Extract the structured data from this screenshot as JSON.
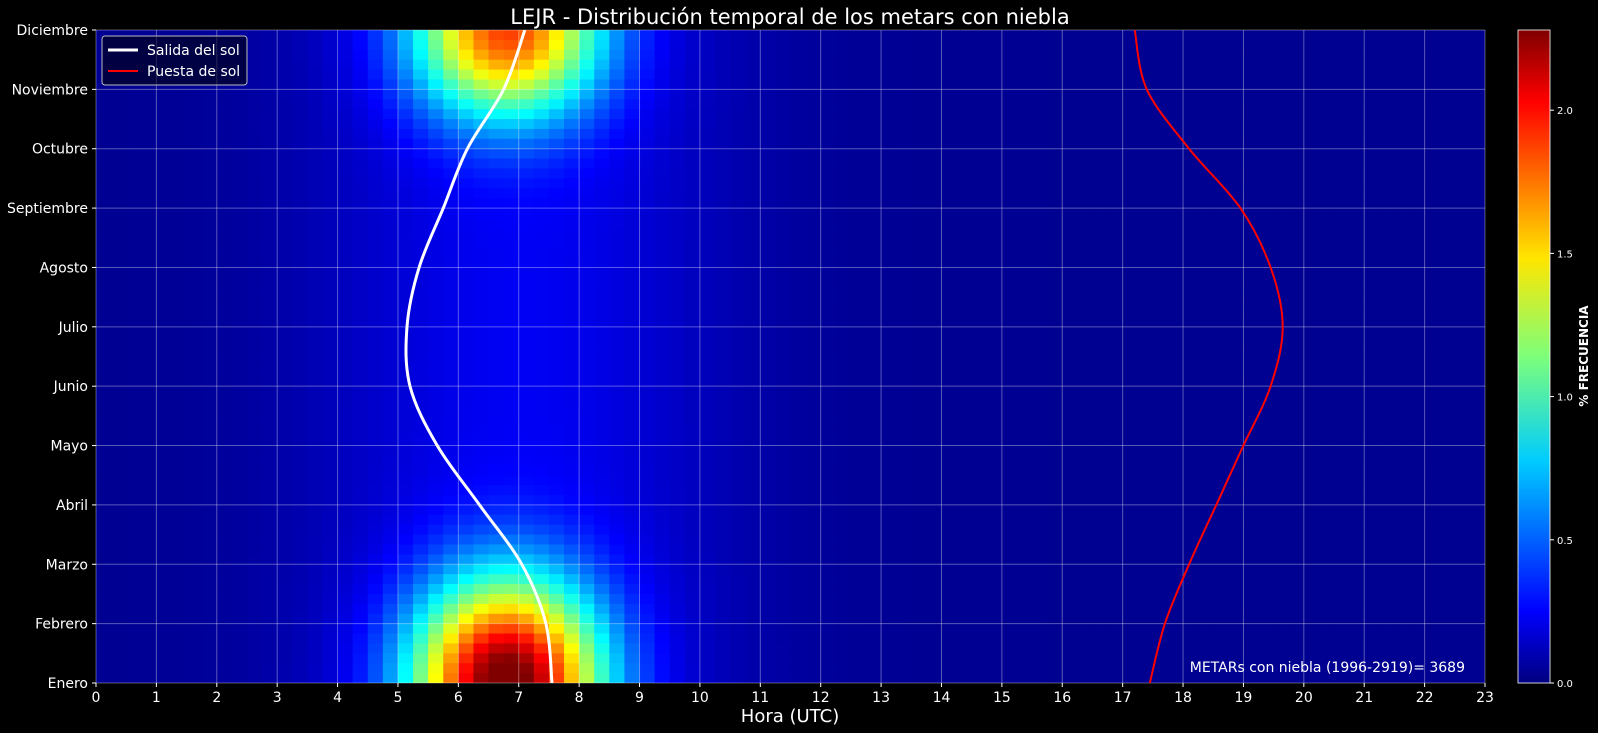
{
  "chart_data": {
    "type": "heatmap",
    "title": "LEJR - Distribución temporal de los metars con niebla",
    "xlabel": "Hora (UTC)",
    "ylabel": "",
    "xlim": [
      0,
      23
    ],
    "x_ticks": [
      "0",
      "1",
      "2",
      "3",
      "4",
      "5",
      "6",
      "7",
      "8",
      "9",
      "10",
      "11",
      "12",
      "13",
      "14",
      "15",
      "16",
      "17",
      "18",
      "19",
      "20",
      "21",
      "22",
      "23"
    ],
    "y_categories": [
      "Enero",
      "Febrero",
      "Marzo",
      "Abril",
      "Mayo",
      "Junio",
      "Julio",
      "Agosto",
      "Septiembre",
      "Octubre",
      "Noviembre",
      "Diciembre"
    ],
    "colorbar": {
      "label": "% FRECUENCIA",
      "ticks": [
        "0.0",
        "0.5",
        "1.0",
        "1.5",
        "2.0"
      ],
      "range": [
        0,
        2.28
      ],
      "colormap": "jet"
    },
    "grid": true,
    "legend_placement": "top-left",
    "annotation": "METARs con niebla (1996-2919)= 3689",
    "heatmap_peaks": [
      {
        "month": "Enero",
        "hour": 6.8,
        "frequency": 2.28
      },
      {
        "month": "Diciembre",
        "hour": 6.8,
        "frequency": 1.75
      }
    ],
    "series": [
      {
        "name": "Salida del sol",
        "color": "#ffffff",
        "y": [
          0,
          1,
          2,
          3,
          4,
          5,
          6,
          7,
          8,
          9,
          10,
          11
        ],
        "x": [
          7.55,
          7.45,
          7.05,
          6.35,
          5.65,
          5.2,
          5.15,
          5.35,
          5.75,
          6.15,
          6.75,
          7.1
        ]
      },
      {
        "name": "Puesta de sol",
        "color": "#ff0000",
        "y": [
          0,
          1,
          2,
          3,
          4,
          5,
          6,
          7,
          8,
          9,
          10,
          11
        ],
        "x": [
          17.45,
          17.7,
          18.1,
          18.55,
          19.0,
          19.45,
          19.65,
          19.45,
          18.95,
          18.1,
          17.4,
          17.2
        ]
      }
    ]
  }
}
